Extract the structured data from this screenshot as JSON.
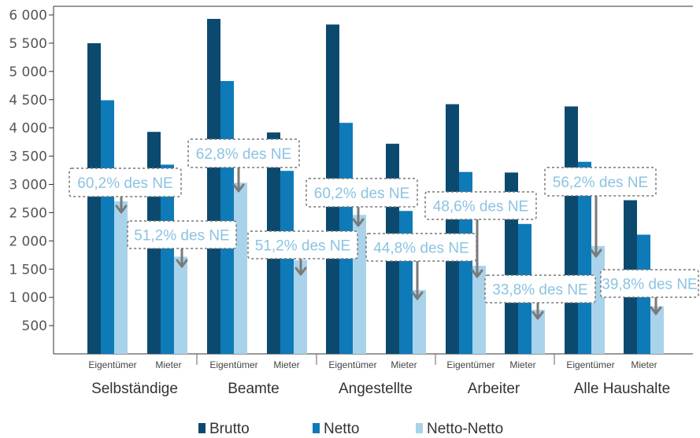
{
  "chart_data": {
    "type": "bar",
    "title": "",
    "xlabel": "",
    "ylabel": "",
    "ylim": [
      0,
      6000
    ],
    "yticks": [
      500,
      1000,
      1500,
      2000,
      2500,
      3000,
      3500,
      4000,
      4500,
      5000,
      5500,
      6000
    ],
    "ytick_labels": [
      "500",
      "1 000",
      "1 500",
      "2 000",
      "2 500",
      "3 000",
      "3 500",
      "4 000",
      "4 500",
      "5 000",
      "5 500",
      "6 000"
    ],
    "grid": false,
    "legend": "bottom",
    "groups": [
      "Selbständige",
      "Beamte",
      "Angestellte",
      "Arbeiter",
      "Alle Haushalte"
    ],
    "subcategories": [
      "Eigentümer",
      "Mieter"
    ],
    "series": [
      {
        "name": "Brutto",
        "color": "#0b4a6e",
        "values": [
          5500,
          3930,
          5930,
          3920,
          5830,
          3720,
          4420,
          3210,
          4380,
          2720
        ]
      },
      {
        "name": "Netto",
        "color": "#0f7ab8",
        "values": [
          4490,
          3350,
          4830,
          3240,
          4090,
          2530,
          3220,
          2300,
          3400,
          2110
        ]
      },
      {
        "name": "Netto-Netto",
        "color": "#a9d3ea",
        "values": [
          2700,
          1720,
          3030,
          1660,
          2460,
          1130,
          1560,
          780,
          1910,
          840
        ]
      }
    ],
    "annotations": [
      "60,2% des NE",
      "51,2% des NE",
      "62,8% des NE",
      "51,2% des NE",
      "60,2% des NE",
      "44,8% des NE",
      "48,6% des NE",
      "33,8% des NE",
      "56,2% des NE",
      "39,8% des NE"
    ]
  }
}
